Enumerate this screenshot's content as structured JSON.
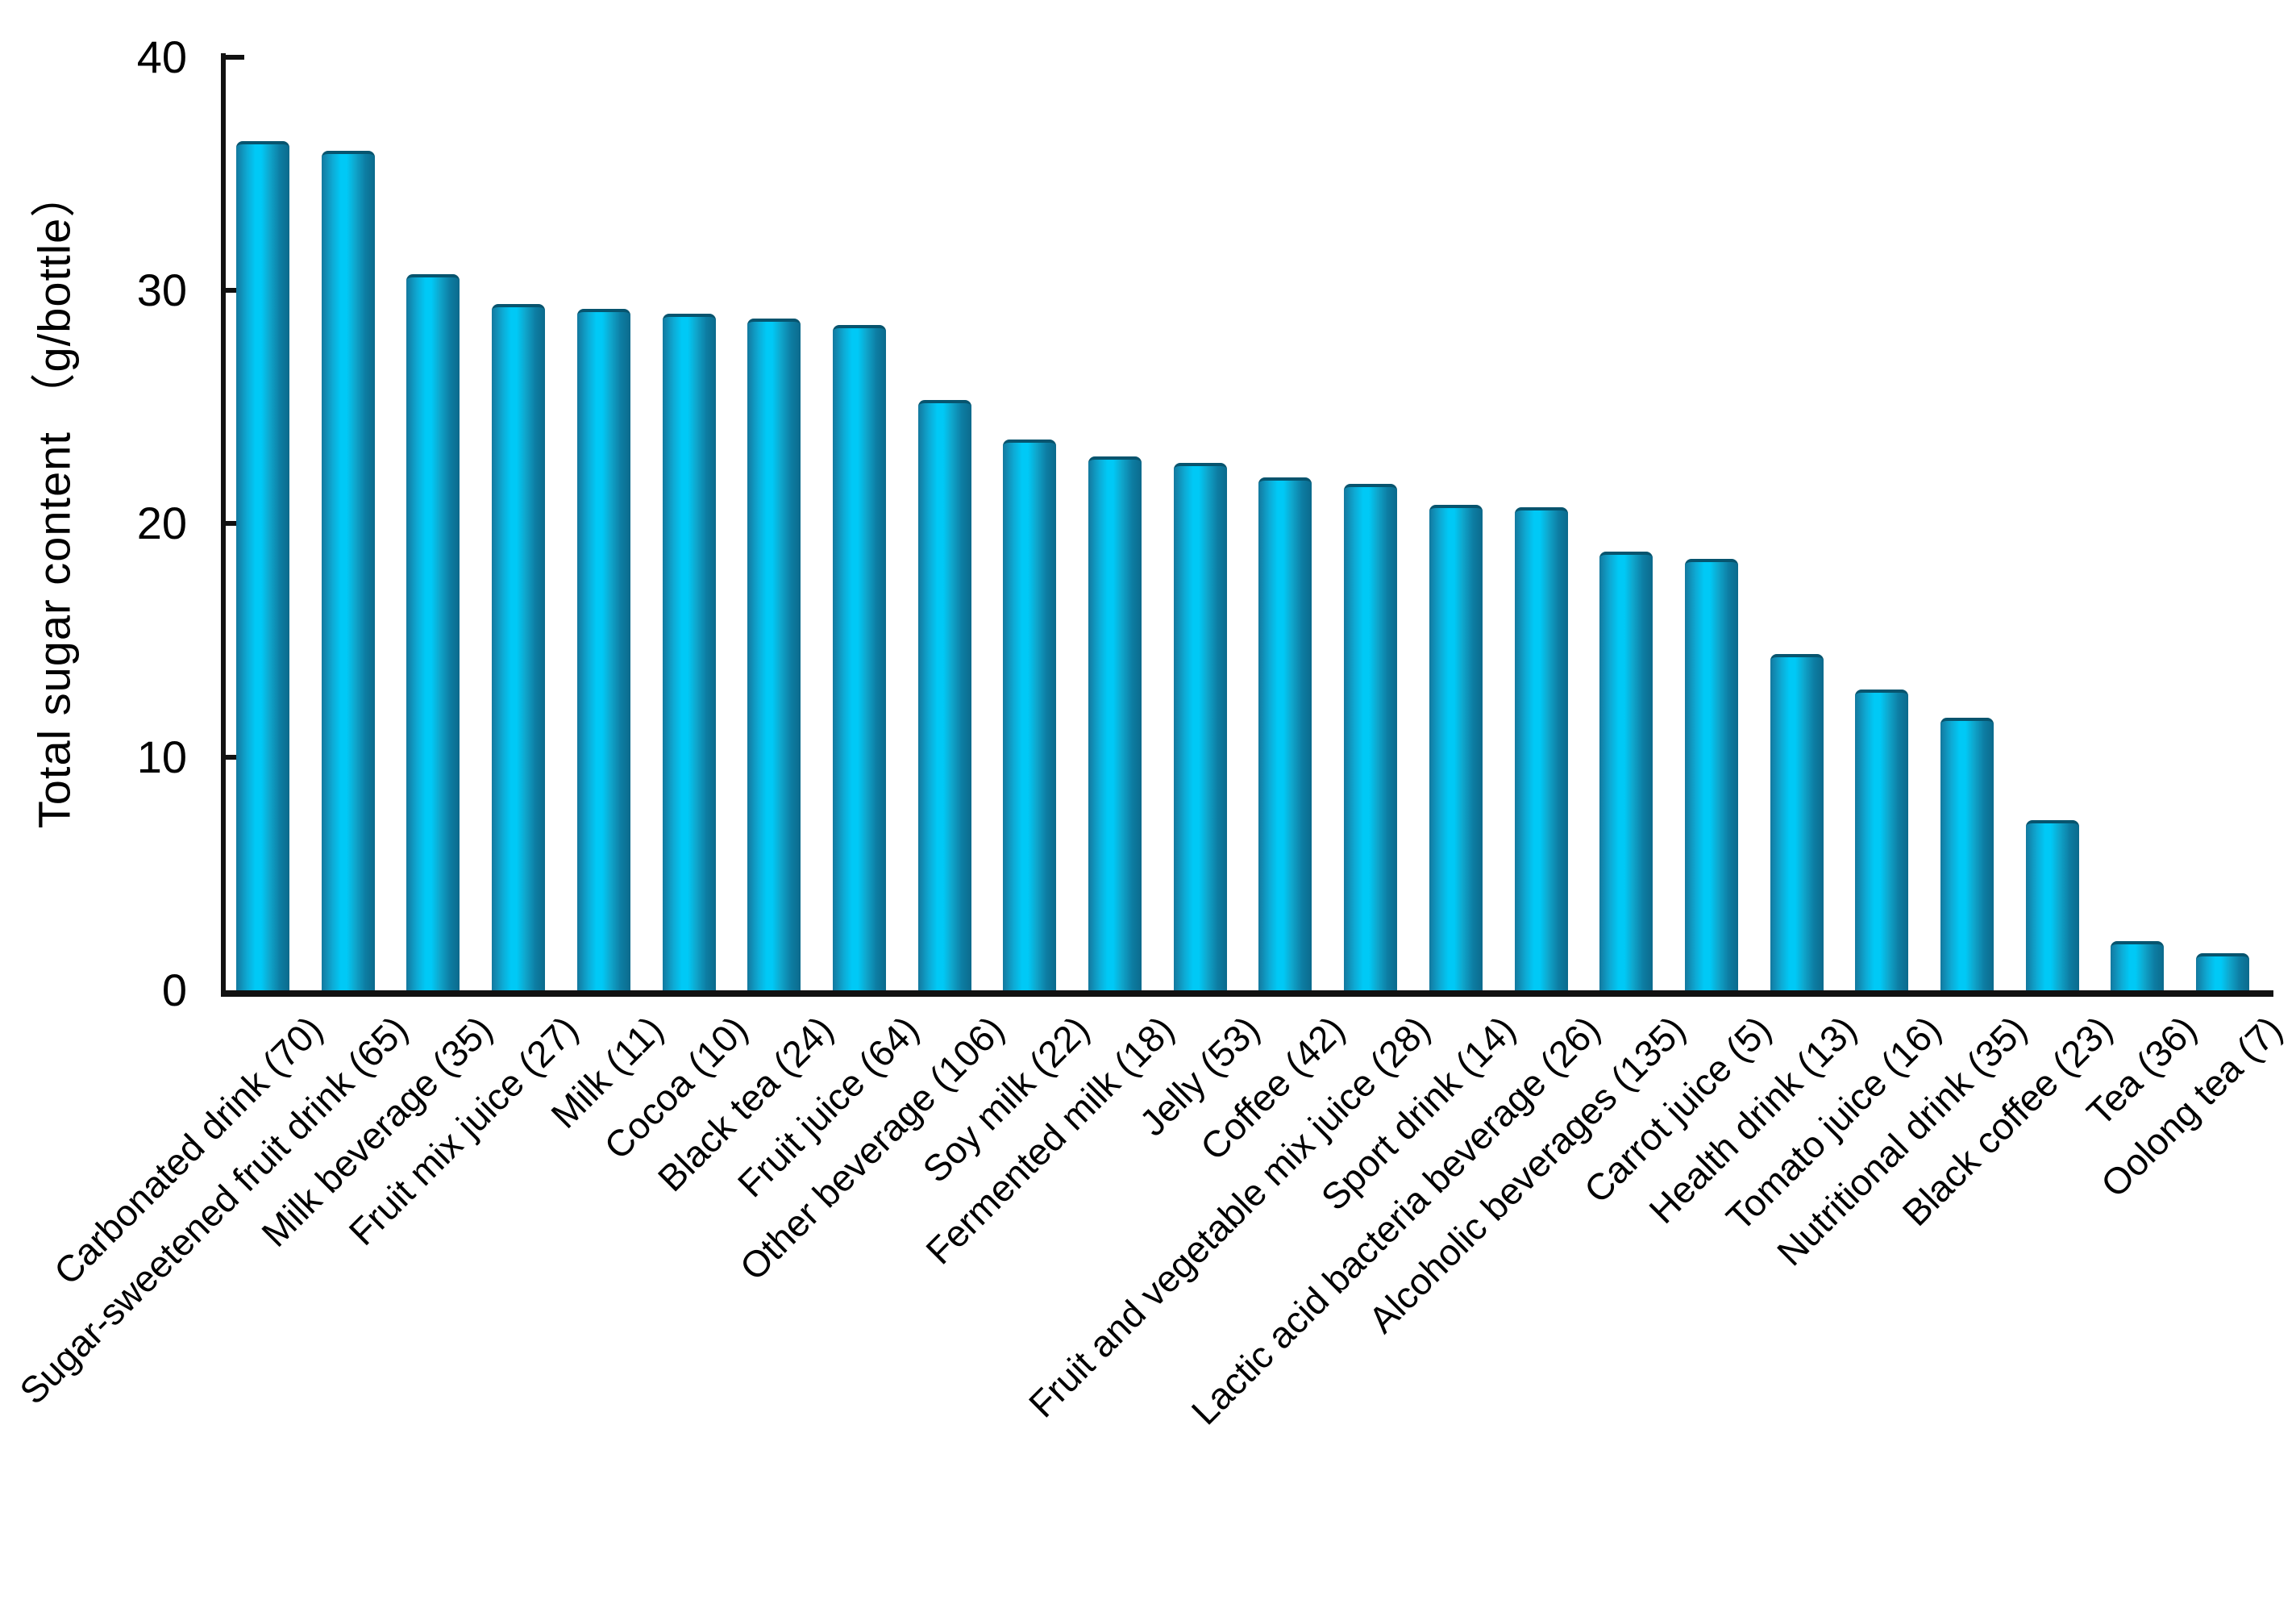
{
  "y_axis": {
    "title": "Total sugar content （g/bottle）",
    "tick_labels": [
      "0",
      "10",
      "20",
      "30",
      "40"
    ]
  },
  "colors": {
    "bar_bright_center": "#00c9f6",
    "bar_edge_left": "#13789e",
    "bar_edge_right": "#0b6a8c",
    "bar_top_cap": "#07546e",
    "axis": "#111111",
    "text": "#000000"
  },
  "chart_data": {
    "type": "bar",
    "title": "",
    "xlabel": "",
    "ylabel": "Total sugar content （g/bottle）",
    "ylim": [
      0,
      40
    ],
    "yticks": [
      0,
      10,
      20,
      30,
      40
    ],
    "grid": false,
    "legend_position": "none",
    "categories": [
      "Carbonated drink (70)",
      "Sugar-sweetened fruit drink (65)",
      "Milk beverage (35)",
      "Fruit mix juice (27)",
      "Milk (11)",
      "Cocoa (10)",
      "Black tea (24)",
      "Fruit juice (64)",
      "Other beverage (106)",
      "Soy milk (22)",
      "Fermented milk (18)",
      "Jelly (53)",
      "Coffee (42)",
      "Fruit and vegetable mix juice (28)",
      "Sport drink (14)",
      "Lactic acid bacteria beverage (26)",
      "Alcoholic beverages (135)",
      "Carrot juice (5)",
      "Health drink (13)",
      "Tomato juice (16)",
      "Nutritional drink (35)",
      "Black coffee (23)",
      "Tea (36)",
      "Oolong tea (7)"
    ],
    "values": [
      36.4,
      36.0,
      30.7,
      29.4,
      29.2,
      29.0,
      28.8,
      28.5,
      25.3,
      23.6,
      22.9,
      22.6,
      22.0,
      21.7,
      20.8,
      20.7,
      18.8,
      18.5,
      14.4,
      12.9,
      11.7,
      7.3,
      2.1,
      1.6
    ]
  }
}
